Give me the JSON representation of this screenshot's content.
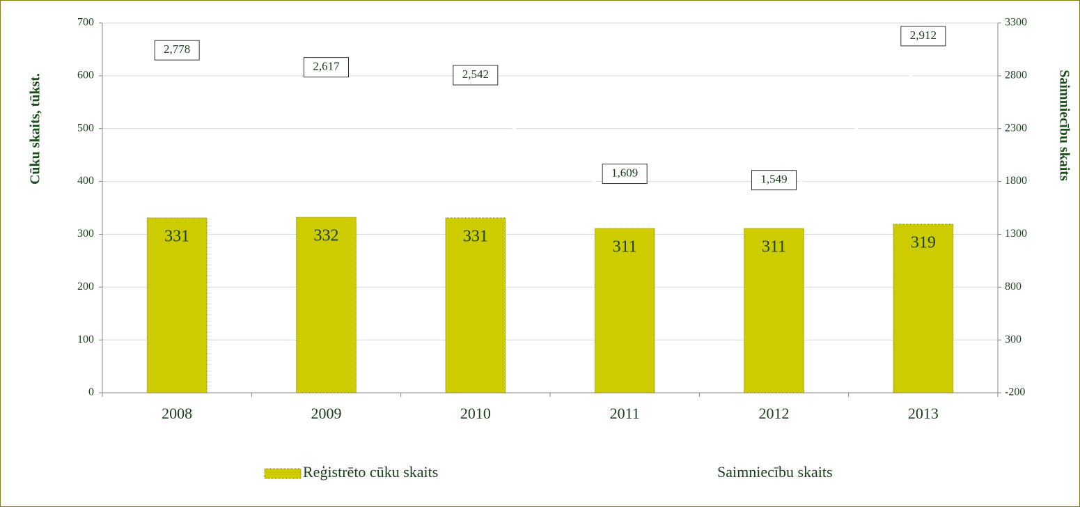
{
  "chart_data": {
    "type": "bar",
    "categories": [
      "2008",
      "2009",
      "2010",
      "2011",
      "2012",
      "2013"
    ],
    "series": [
      {
        "name": "Reģistrēto cūku skaits",
        "type": "bar",
        "color": "#cccc00",
        "values": [
          331,
          332,
          331,
          311,
          311,
          319
        ]
      },
      {
        "name": "Saimniecību skaits",
        "type": "line",
        "axis": "y2",
        "color": "#ffffff",
        "values": [
          2778,
          2617,
          2542,
          1609,
          1549,
          2912
        ],
        "value_labels": [
          "2,778",
          "2,617",
          "2,542",
          "1,609",
          "1,549",
          "2,912"
        ]
      }
    ],
    "ylabel": "Cūku skaits, tūkst.",
    "y2label": "Saimniecību skaits",
    "ylim": [
      0,
      700
    ],
    "yticks": [
      0,
      100,
      200,
      300,
      400,
      500,
      600,
      700
    ],
    "y2lim": [
      -200,
      3300
    ],
    "y2ticks": [
      -200,
      300,
      800,
      1300,
      1800,
      2300,
      2800,
      3300
    ],
    "grid": true,
    "legend": "bottom"
  }
}
